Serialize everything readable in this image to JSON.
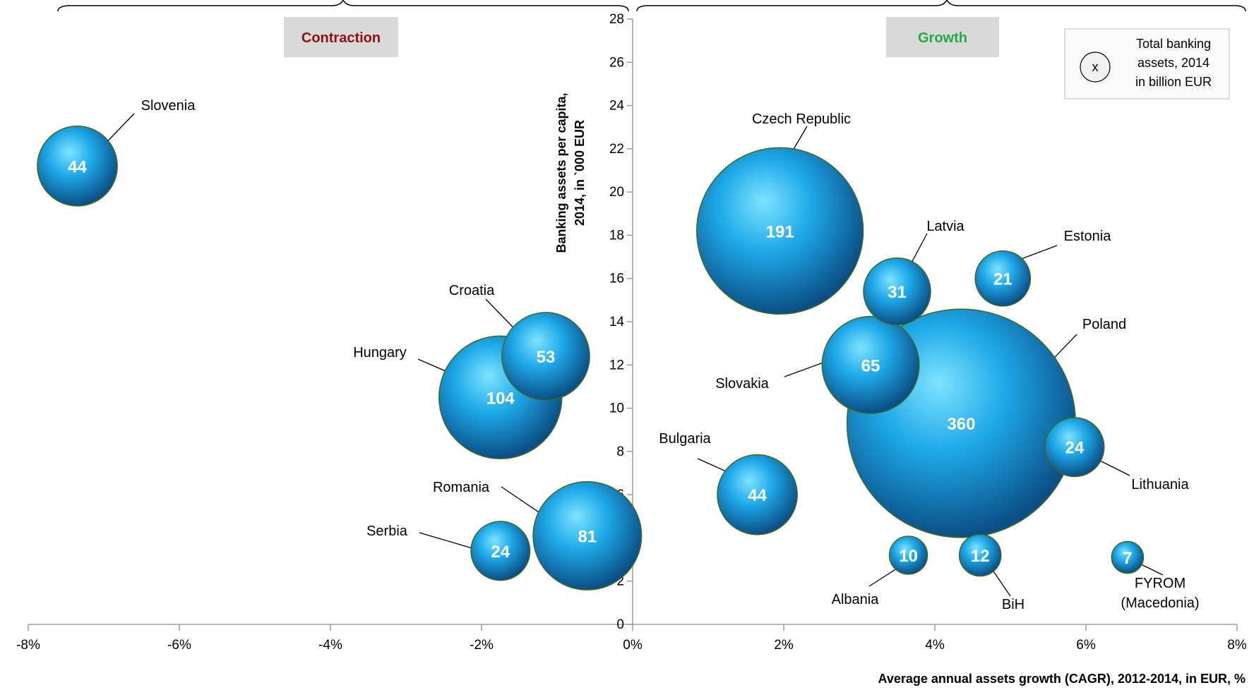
{
  "colors": {
    "bubble_light": "#7fe3ff",
    "bubble_mid": "#1ea9e8",
    "bubble_dark": "#0b4f86",
    "bubble_outline": "#3e6b1e",
    "contraction": "#8b1111",
    "growth": "#1faa4a",
    "section_bg": "#d9d9d9"
  },
  "chart_data": {
    "type": "bubble",
    "xlabel": "Average annual assets growth (CAGR), 2012-2014, in EUR, %",
    "ylabel_line1": "Banking assets per capita,",
    "ylabel_line2": "2014,  in `000 EUR",
    "xlim": [
      -8,
      8
    ],
    "ylim": [
      0,
      28
    ],
    "x_ticks": [
      -8,
      -6,
      -4,
      -2,
      0,
      2,
      4,
      6,
      8
    ],
    "x_tick_labels": [
      "-8%",
      "-6%",
      "-4%",
      "-2%",
      "0%",
      "2%",
      "4%",
      "6%",
      "8%"
    ],
    "y_ticks": [
      0,
      2,
      4,
      6,
      8,
      10,
      12,
      14,
      16,
      18,
      20,
      22,
      24,
      26,
      28
    ],
    "y_tick_labels": [
      "0",
      "2",
      "4",
      "6",
      "8",
      "10",
      "12",
      "14",
      "16",
      "18",
      "20",
      "22",
      "24",
      "26",
      "28"
    ],
    "sections": {
      "contraction": "Contraction",
      "growth": "Growth"
    },
    "legend": {
      "symbol": "x",
      "line1": "Total banking",
      "line2": "assets, 2014",
      "line3": "in billion EUR"
    },
    "bubble_size_unit": "Total banking assets, 2014 in billion EUR",
    "points": [
      {
        "name": "Slovenia",
        "x": -7.35,
        "y": 21.2,
        "size": 44,
        "label": [
          "Slovenia"
        ]
      },
      {
        "name": "Croatia",
        "x": -1.15,
        "y": 12.4,
        "size": 53,
        "label": [
          "Croatia"
        ]
      },
      {
        "name": "Hungary",
        "x": -1.75,
        "y": 10.5,
        "size": 104,
        "label": [
          "Hungary"
        ]
      },
      {
        "name": "Romania",
        "x": -0.6,
        "y": 4.1,
        "size": 81,
        "label": [
          "Romania"
        ]
      },
      {
        "name": "Serbia",
        "x": -1.75,
        "y": 3.4,
        "size": 24,
        "label": [
          "Serbia"
        ]
      },
      {
        "name": "Czech Republic",
        "x": 1.95,
        "y": 18.2,
        "size": 191,
        "label": [
          "Czech  Republic"
        ]
      },
      {
        "name": "Latvia",
        "x": 3.5,
        "y": 15.4,
        "size": 31,
        "label": [
          "Latvia"
        ]
      },
      {
        "name": "Estonia",
        "x": 4.9,
        "y": 16.0,
        "size": 21,
        "label": [
          "Estonia"
        ]
      },
      {
        "name": "Slovakia",
        "x": 3.15,
        "y": 12.0,
        "size": 65,
        "label": [
          "Slovakia"
        ]
      },
      {
        "name": "Poland",
        "x": 4.35,
        "y": 9.3,
        "size": 360,
        "label": [
          "Poland"
        ]
      },
      {
        "name": "Lithuania",
        "x": 5.85,
        "y": 8.2,
        "size": 24,
        "label": [
          "Lithuania"
        ]
      },
      {
        "name": "Bulgaria",
        "x": 1.65,
        "y": 6.0,
        "size": 44,
        "label": [
          "Bulgaria"
        ]
      },
      {
        "name": "Albania",
        "x": 3.65,
        "y": 3.2,
        "size": 10,
        "label": [
          "Albania"
        ]
      },
      {
        "name": "BiH",
        "x": 4.6,
        "y": 3.2,
        "size": 12,
        "label": [
          "BiH"
        ]
      },
      {
        "name": "FYROM",
        "x": 6.55,
        "y": 3.1,
        "size": 7,
        "label": [
          "FYROM",
          "(Macedonia)"
        ]
      }
    ]
  }
}
